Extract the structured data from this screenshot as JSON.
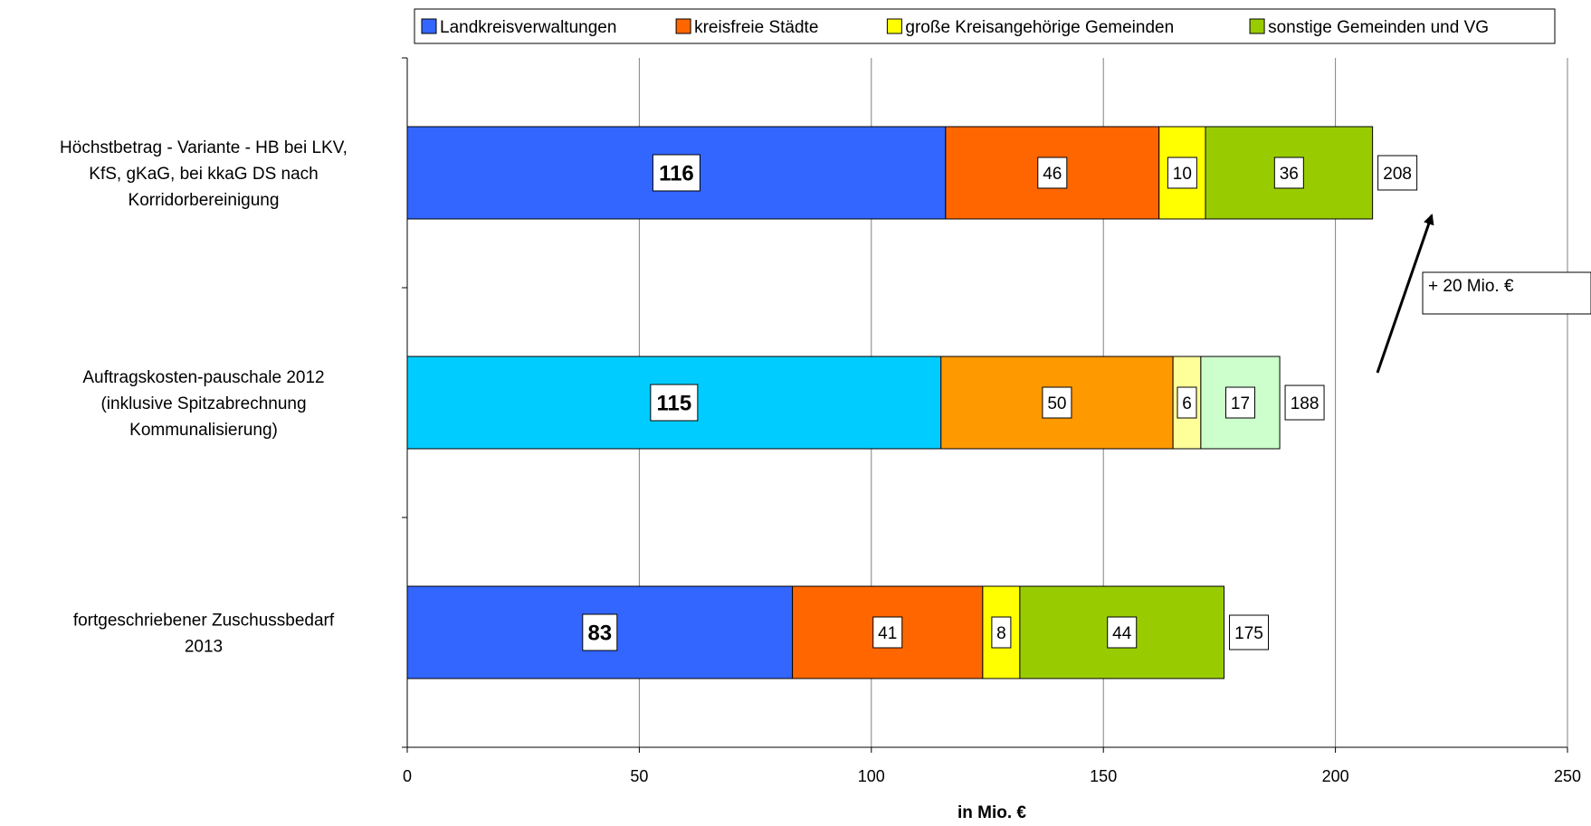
{
  "chart_data": {
    "type": "bar",
    "orientation": "horizontal",
    "stacked": true,
    "categories": [
      "Höchstbetrag - Variante - HB bei LKV, KfS, gKaG, bei kkaG DS nach Korridorbereinigung",
      "Auftragskosten-pauschale 2012 (inklusive Spitzabrechnung Kommunalisierung)",
      "fortgeschriebener Zuschussbedarf 2013"
    ],
    "category_label_lines": [
      [
        "Höchstbetrag - Variante - HB bei LKV,",
        "KfS, gKaG, bei kkaG DS nach",
        "Korridorbereinigung"
      ],
      [
        "Auftragskosten-pauschale 2012",
        "(inklusive Spitzabrechnung",
        "Kommunalisierung)"
      ],
      [
        "fortgeschriebener Zuschussbedarf",
        "2013"
      ]
    ],
    "series": [
      {
        "name": "Landkreisverwaltungen",
        "values": [
          116,
          115,
          83
        ],
        "colors": [
          "#3366FF",
          "#00CCFF",
          "#3366FF"
        ]
      },
      {
        "name": "kreisfreie Städte",
        "values": [
          46,
          50,
          41
        ],
        "colors": [
          "#FF6600",
          "#FF9900",
          "#FF6600"
        ]
      },
      {
        "name": "große Kreisangehörige Gemeinden",
        "values": [
          10,
          6,
          8
        ],
        "colors": [
          "#FFFF00",
          "#FFFF99",
          "#FFFF00"
        ]
      },
      {
        "name": "sonstige Gemeinden und VG",
        "values": [
          36,
          17,
          44
        ],
        "colors": [
          "#99CC00",
          "#CCFFCC",
          "#99CC00"
        ]
      }
    ],
    "totals": [
      "208",
      "188",
      "175"
    ],
    "xlabel": "in Mio. €",
    "ylabel": "",
    "xlim": [
      0,
      250
    ],
    "xticks": [
      0,
      50,
      100,
      150,
      200,
      250
    ],
    "grid": "vertical",
    "legend_position": "top",
    "legend_colors": [
      "#3366FF",
      "#FF6600",
      "#FFFF00",
      "#99CC00"
    ],
    "annotation": {
      "text": "+ 20 Mio. €",
      "arrow": "from middle bar total to top bar total"
    }
  }
}
